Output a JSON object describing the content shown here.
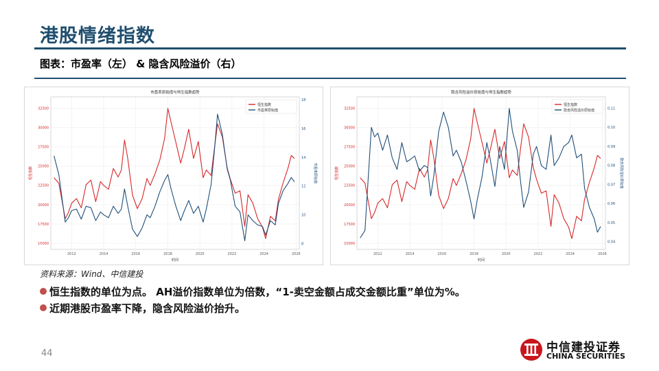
{
  "slide": {
    "title": "港股情绪指数",
    "subtitle": "图表：市盈率（左） & 隐含风险溢价（右）",
    "source": "资料来源：Wind、中信建投",
    "bullets": [
      "恒生指数的单位为点。 AH溢价指数单位为倍数，“1-卖空金额占成交金额比重”单位为%。",
      "近期港股市盈率下降，隐含风险溢价抬升。"
    ],
    "page_number": "44"
  },
  "logo": {
    "cn": "中信建投证券",
    "en": "CHINA SECURITIES"
  },
  "colors": {
    "hsi": "#d62728",
    "secondary": "#1f4e79",
    "accent": "#1f4e6e"
  },
  "chart_data": [
    {
      "type": "line",
      "title": "市盈率原始值与恒生指数趋势",
      "xlabel": "时间",
      "ylabel": "恒生指数",
      "y2label": "市盈率原始值",
      "x_ticks": [
        "2012",
        "2014",
        "2016",
        "2018",
        "2020",
        "2022",
        "2024",
        "2026"
      ],
      "xlim": [
        2010.7,
        2026.2
      ],
      "y_ticks": [
        "15000",
        "17500",
        "20000",
        "22500",
        "25000",
        "27500",
        "30000",
        "32500"
      ],
      "ylim": [
        14200,
        34000
      ],
      "y2_ticks": [
        "8",
        "10",
        "12",
        "14",
        "16",
        "18"
      ],
      "y2lim": [
        7.6,
        18.2
      ],
      "legend": "top-right",
      "series": [
        {
          "name": "恒生指数",
          "axis": "left",
          "color": "#d62728",
          "x": [
            2010.9,
            2011.2,
            2011.6,
            2011.8,
            2012.0,
            2012.3,
            2012.6,
            2012.9,
            2013.2,
            2013.5,
            2013.8,
            2014.0,
            2014.3,
            2014.6,
            2014.9,
            2015.1,
            2015.3,
            2015.5,
            2015.8,
            2016.1,
            2016.4,
            2016.7,
            2016.9,
            2017.2,
            2017.5,
            2017.8,
            2018.0,
            2018.2,
            2018.5,
            2018.8,
            2019.0,
            2019.3,
            2019.6,
            2019.9,
            2020.2,
            2020.4,
            2020.7,
            2020.9,
            2021.1,
            2021.4,
            2021.7,
            2021.9,
            2022.2,
            2022.5,
            2022.8,
            2023.0,
            2023.3,
            2023.6,
            2023.9,
            2024.1,
            2024.4,
            2024.7,
            2024.9,
            2025.2,
            2025.5,
            2025.7,
            2025.9
          ],
          "values": [
            23500,
            22800,
            18200,
            19000,
            20200,
            20800,
            19600,
            22600,
            23200,
            20400,
            23000,
            22500,
            22000,
            24700,
            23600,
            24500,
            28400,
            26000,
            21200,
            19500,
            20800,
            23400,
            22500,
            24000,
            25800,
            28600,
            32500,
            30700,
            28100,
            25400,
            27000,
            29800,
            26000,
            28200,
            23500,
            24500,
            23800,
            27200,
            30500,
            28800,
            24800,
            23300,
            21500,
            21800,
            17200,
            21300,
            20200,
            18200,
            17100,
            15600,
            18500,
            17900,
            20700,
            22900,
            24800,
            26400,
            26000
          ]
        },
        {
          "name": "市盈率原始值",
          "axis": "right",
          "color": "#1f4e79",
          "x": [
            2010.9,
            2011.2,
            2011.6,
            2011.8,
            2012.0,
            2012.3,
            2012.6,
            2012.9,
            2013.2,
            2013.5,
            2013.8,
            2014.0,
            2014.3,
            2014.6,
            2014.9,
            2015.1,
            2015.3,
            2015.5,
            2015.8,
            2016.1,
            2016.4,
            2016.7,
            2016.9,
            2017.2,
            2017.5,
            2017.8,
            2018.0,
            2018.2,
            2018.5,
            2018.8,
            2019.0,
            2019.3,
            2019.6,
            2019.9,
            2020.2,
            2020.4,
            2020.7,
            2020.9,
            2021.1,
            2021.4,
            2021.7,
            2021.9,
            2022.2,
            2022.5,
            2022.8,
            2023.0,
            2023.3,
            2023.6,
            2023.9,
            2024.1,
            2024.4,
            2024.7,
            2024.9,
            2025.2,
            2025.5,
            2025.7,
            2025.9
          ],
          "values": [
            14.1,
            12.8,
            9.5,
            9.8,
            10.3,
            10.4,
            9.7,
            10.6,
            10.5,
            9.6,
            10.2,
            10.0,
            9.8,
            10.6,
            10.1,
            10.4,
            11.8,
            10.6,
            9.0,
            8.5,
            9.1,
            10.0,
            9.8,
            10.6,
            11.6,
            12.4,
            12.8,
            11.8,
            10.6,
            9.6,
            10.2,
            11.0,
            10.1,
            10.6,
            9.5,
            10.4,
            12.1,
            14.4,
            17.0,
            15.6,
            13.2,
            12.4,
            10.6,
            10.2,
            8.2,
            10.0,
            9.6,
            9.3,
            9.2,
            8.6,
            9.6,
            9.3,
            10.8,
            11.7,
            12.2,
            12.6,
            12.3
          ]
        }
      ]
    },
    {
      "type": "line",
      "title": "隐含风险溢价原始值与恒生指数趋势",
      "xlabel": "时间",
      "ylabel": "恒生指数",
      "y2label": "隐含风险溢价原始值",
      "x_ticks": [
        "2012",
        "2014",
        "2016",
        "2018",
        "2020",
        "2022",
        "2024",
        "2026"
      ],
      "xlim": [
        2010.7,
        2026.2
      ],
      "y_ticks": [
        "15000",
        "17500",
        "20000",
        "22500",
        "25000",
        "27500",
        "30000",
        "32500"
      ],
      "ylim": [
        14200,
        34000
      ],
      "y2_ticks": [
        "0.04",
        "0.05",
        "0.06",
        "0.07",
        "0.08",
        "0.09",
        "0.10",
        "0.11"
      ],
      "y2lim": [
        0.036,
        0.116
      ],
      "legend": "top-right",
      "series": [
        {
          "name": "恒生指数",
          "axis": "left",
          "color": "#d62728",
          "x": [
            2010.9,
            2011.2,
            2011.6,
            2011.8,
            2012.0,
            2012.3,
            2012.6,
            2012.9,
            2013.2,
            2013.5,
            2013.8,
            2014.0,
            2014.3,
            2014.6,
            2014.9,
            2015.1,
            2015.3,
            2015.5,
            2015.8,
            2016.1,
            2016.4,
            2016.7,
            2016.9,
            2017.2,
            2017.5,
            2017.8,
            2018.0,
            2018.2,
            2018.5,
            2018.8,
            2019.0,
            2019.3,
            2019.6,
            2019.9,
            2020.2,
            2020.4,
            2020.7,
            2020.9,
            2021.1,
            2021.4,
            2021.7,
            2021.9,
            2022.2,
            2022.5,
            2022.8,
            2023.0,
            2023.3,
            2023.6,
            2023.9,
            2024.1,
            2024.4,
            2024.7,
            2024.9,
            2025.2,
            2025.5,
            2025.7,
            2025.9
          ],
          "values": [
            23500,
            22800,
            18200,
            19000,
            20200,
            20800,
            19600,
            22600,
            23200,
            20400,
            23000,
            22500,
            22000,
            24700,
            23600,
            24500,
            28400,
            26000,
            21200,
            19500,
            20800,
            23400,
            22500,
            24000,
            25800,
            28600,
            32500,
            30700,
            28100,
            25400,
            27000,
            29800,
            26000,
            28200,
            23500,
            24500,
            23800,
            27200,
            30500,
            28800,
            24800,
            23300,
            21500,
            21800,
            17200,
            21300,
            20200,
            18200,
            17100,
            15600,
            18500,
            17900,
            20700,
            22900,
            24800,
            26400,
            26000
          ]
        },
        {
          "name": "隐含风险溢价原始值",
          "axis": "right",
          "color": "#1f4e79",
          "x": [
            2010.9,
            2011.2,
            2011.6,
            2011.8,
            2012.0,
            2012.3,
            2012.6,
            2012.9,
            2013.2,
            2013.5,
            2013.8,
            2014.0,
            2014.3,
            2014.6,
            2014.9,
            2015.1,
            2015.3,
            2015.5,
            2015.8,
            2016.1,
            2016.4,
            2016.7,
            2016.9,
            2017.2,
            2017.5,
            2017.8,
            2018.0,
            2018.2,
            2018.5,
            2018.8,
            2019.0,
            2019.3,
            2019.6,
            2019.9,
            2020.2,
            2020.4,
            2020.7,
            2020.9,
            2021.1,
            2021.4,
            2021.7,
            2021.9,
            2022.2,
            2022.5,
            2022.8,
            2023.0,
            2023.3,
            2023.6,
            2023.9,
            2024.1,
            2024.4,
            2024.7,
            2024.9,
            2025.2,
            2025.5,
            2025.7,
            2025.9
          ],
          "values": [
            0.042,
            0.046,
            0.1,
            0.095,
            0.097,
            0.088,
            0.096,
            0.084,
            0.078,
            0.092,
            0.082,
            0.083,
            0.085,
            0.077,
            0.08,
            0.079,
            0.064,
            0.075,
            0.098,
            0.108,
            0.1,
            0.085,
            0.088,
            0.082,
            0.072,
            0.061,
            0.052,
            0.062,
            0.074,
            0.092,
            0.084,
            0.069,
            0.09,
            0.078,
            0.11,
            0.098,
            0.088,
            0.072,
            0.058,
            0.066,
            0.086,
            0.09,
            0.08,
            0.078,
            0.096,
            0.08,
            0.084,
            0.09,
            0.092,
            0.096,
            0.084,
            0.086,
            0.068,
            0.058,
            0.052,
            0.045,
            0.048
          ]
        }
      ]
    }
  ]
}
